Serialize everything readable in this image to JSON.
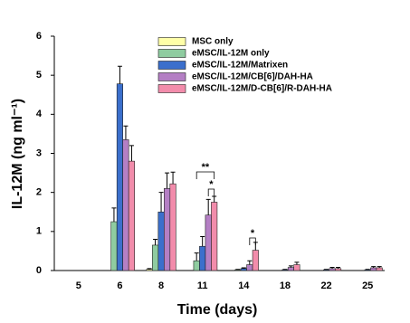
{
  "chart_data": {
    "type": "bar",
    "x_label": "Time (days)",
    "y_label": "IL-12M (ng ml⁻¹)",
    "categories": [
      "5",
      "6",
      "8",
      "11",
      "14",
      "18",
      "22",
      "25"
    ],
    "series": [
      {
        "name": "MSC only",
        "color": "#ffffa8",
        "values": [
          0,
          0,
          0.03,
          0,
          0,
          0,
          0,
          0
        ],
        "errors": [
          0,
          0,
          0.02,
          0,
          0,
          0,
          0,
          0
        ]
      },
      {
        "name": "eMSC/IL-12M only",
        "color": "#8fcca0",
        "values": [
          0,
          1.25,
          0.65,
          0.25,
          0.02,
          0,
          0,
          0
        ],
        "errors": [
          0,
          0.35,
          0.15,
          0.2,
          0.01,
          0,
          0,
          0
        ]
      },
      {
        "name": "eMSC/IL-12M/Matrixen",
        "color": "#3b6fcc",
        "values": [
          0,
          4.78,
          1.5,
          0.62,
          0.05,
          0.02,
          0.02,
          0.02
        ],
        "errors": [
          0,
          0.45,
          0.5,
          0.25,
          0.02,
          0.01,
          0.01,
          0.01
        ]
      },
      {
        "name": "eMSC/IL-12M/CB[6]/DAH-HA",
        "color": "#b47fc4",
        "values": [
          0,
          3.35,
          2.1,
          1.42,
          0.15,
          0.08,
          0.05,
          0.07
        ],
        "errors": [
          0,
          0.35,
          0.4,
          0.4,
          0.1,
          0.04,
          0.03,
          0.03
        ]
      },
      {
        "name": "eMSC/IL-12M/D-CB[6]/R-DAH-HA",
        "color": "#f28cab",
        "values": [
          0,
          2.8,
          2.22,
          1.75,
          0.52,
          0.15,
          0.05,
          0.07
        ],
        "errors": [
          0,
          0.4,
          0.3,
          0.15,
          0.2,
          0.06,
          0.03,
          0.03
        ]
      }
    ],
    "annotations": [
      "**",
      "*",
      "*"
    ],
    "ylim": [
      0,
      6
    ],
    "yticks": [
      0,
      1,
      2,
      3,
      4,
      5,
      6
    ]
  }
}
